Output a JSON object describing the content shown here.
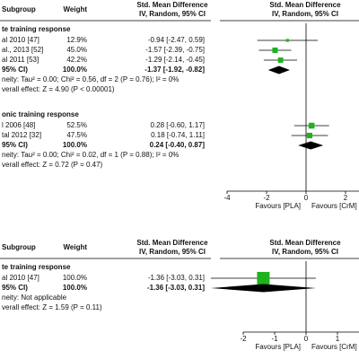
{
  "panels": [
    {
      "header": {
        "subgroup": "Subgroup",
        "weight": "Weight",
        "smd_left": "Std. Mean Difference",
        "method_left": "IV, Random, 95% CI",
        "smd_right": "Std. Mean Difference",
        "method_right": "IV, Random, 95% CI"
      },
      "groups": [
        {
          "title": "te training response",
          "rows": [
            {
              "study": "al 2010 [47]",
              "weight": {
                "value": 12.9,
                "label": "12.9%"
              },
              "ci_label": "-0.94 [-2.47, 0.59]",
              "values": [
                -0.94,
                -2.47,
                0.59
              ]
            },
            {
              "study": "al., 2013 [52]",
              "weight": {
                "value": 45.0,
                "label": "45.0%"
              },
              "ci_label": "-1.57 [-2.39, -0.75]",
              "values": [
                -1.57,
                -2.39,
                -0.75
              ]
            },
            {
              "study": "al 2011 [53]",
              "weight": {
                "value": 42.2,
                "label": "42.2%"
              },
              "ci_label": "-1.29 [-2.14, -0.45]",
              "values": [
                -1.29,
                -2.14,
                -0.45
              ]
            }
          ],
          "total": {
            "study": "95% CI)",
            "weight": {
              "value": 100.0,
              "label": "100.0%"
            },
            "ci_label": "-1.37 [-1.92, -0.82]",
            "values": [
              -1.37,
              -1.92,
              -0.82
            ]
          },
          "heterogeneity": "neity: Tau² = 0.00; Chi² = 0.56, df = 2 (P = 0.76); I² = 0%",
          "overall": "verall effect: Z = 4.90 (P < 0.00001)"
        },
        {
          "title": "onic training response",
          "rows": [
            {
              "study": "l 2006 [48]",
              "weight": {
                "value": 52.5,
                "label": "52.5%"
              },
              "ci_label": "0.28 [-0.60, 1.17]",
              "values": [
                0.28,
                -0.6,
                1.17
              ]
            },
            {
              "study": "tal 2012 [32]",
              "weight": {
                "value": 47.5,
                "label": "47.5%"
              },
              "ci_label": "0.18 [-0.74, 1.11]",
              "values": [
                0.18,
                -0.74,
                1.11
              ]
            }
          ],
          "total": {
            "study": "95% CI)",
            "weight": {
              "value": 100.0,
              "label": "100.0%"
            },
            "ci_label": "0.24 [-0.40, 0.87]",
            "values": [
              0.24,
              -0.4,
              0.87
            ]
          },
          "heterogeneity": "neity: Tau² = 0.00; Chi² = 0.02, df = 1 (P = 0.88); I² = 0%",
          "overall": "verall effect: Z = 0.72 (P = 0.47)"
        }
      ],
      "axis": {
        "xlim": [
          -4,
          4
        ],
        "xticks": [
          -4,
          -2,
          0,
          2
        ],
        "favours_left": "Favours [PLA]",
        "favours_right": "Favours [CrM]"
      }
    },
    {
      "header": {
        "subgroup": "Subgroup",
        "weight": "Weight",
        "smd_left": "Std. Mean Difference",
        "method_left": "IV, Random, 95% CI",
        "smd_right": "Std. Mean Difference",
        "method_right": "IV, Random, 95% CI"
      },
      "groups": [
        {
          "title": "te training response",
          "rows": [
            {
              "study": "al 2010 [47]",
              "weight": {
                "value": 100.0,
                "label": "100.0%"
              },
              "ci_label": "-1.36 [-3.03, 0.31]",
              "values": [
                -1.36,
                -3.03,
                0.31
              ]
            }
          ],
          "total": {
            "study": "95% CI)",
            "weight": {
              "value": 100.0,
              "label": "100.0%"
            },
            "ci_label": "-1.36 [-3.03, 0.31]",
            "values": [
              -1.36,
              -3.03,
              0.31
            ]
          },
          "heterogeneity": "neity: Not applicable",
          "overall": "verall effect: Z = 1.59 (P = 0.11)"
        }
      ],
      "axis": {
        "xlim": [
          -2,
          2
        ],
        "xticks": [
          -2,
          -1,
          0,
          1
        ],
        "favours_left": "Favours [PLA]",
        "favours_right": "Favours [CrM]"
      }
    }
  ]
}
